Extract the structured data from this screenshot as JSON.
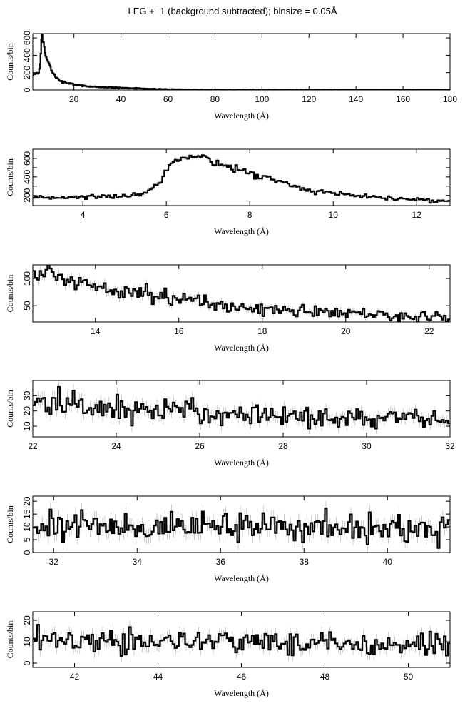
{
  "figure": {
    "title": "LEG +−1 (background subtracted); binsize = 0.05Å",
    "line_color": "#000000",
    "error_color": "#aaaaaa"
  },
  "chart_data": [
    {
      "type": "line",
      "xlabel": "Wavelength (Å)",
      "ylabel": "Counts/bin",
      "xlim": [
        2.5,
        180
      ],
      "ylim": [
        0,
        650
      ],
      "xticks": [
        20,
        40,
        60,
        80,
        100,
        120,
        140,
        160,
        180
      ],
      "yticks": [
        0,
        200,
        400,
        600
      ],
      "series": [
        {
          "x": [
            2.5,
            3,
            4,
            5,
            5.5,
            6,
            6.3,
            6.6,
            7,
            7.5,
            8,
            9,
            10,
            11,
            12,
            14,
            16,
            18,
            20,
            25,
            30,
            40,
            50,
            60,
            70,
            80,
            100,
            120,
            140,
            160,
            180
          ],
          "y": [
            170,
            180,
            190,
            200,
            280,
            450,
            640,
            600,
            560,
            470,
            400,
            330,
            260,
            200,
            160,
            110,
            90,
            75,
            65,
            45,
            35,
            25,
            15,
            8,
            5,
            3,
            2,
            2,
            1,
            1,
            1
          ]
        }
      ]
    },
    {
      "type": "line",
      "xlabel": "Wavelength (Å)",
      "ylabel": "Counts/bin",
      "xlim": [
        2.8,
        12.8
      ],
      "ylim": [
        90,
        700
      ],
      "xticks": [
        4,
        6,
        8,
        10,
        12
      ],
      "yticks": [
        200,
        300,
        400,
        500,
        600
      ],
      "ytick_labels": [
        "200",
        "",
        "400",
        "",
        "600"
      ],
      "series": [
        {
          "x": [
            2.8,
            3.2,
            3.6,
            4.0,
            4.4,
            4.8,
            5.2,
            5.5,
            5.8,
            6.0,
            6.15,
            6.3,
            6.5,
            6.8,
            7.1,
            7.4,
            7.7,
            8.0,
            8.5,
            9.0,
            9.5,
            10.0,
            10.5,
            11.0,
            11.5,
            12.0,
            12.5,
            12.8
          ],
          "y": [
            165,
            175,
            185,
            180,
            190,
            190,
            200,
            230,
            330,
            450,
            560,
            630,
            640,
            620,
            580,
            520,
            480,
            440,
            380,
            310,
            250,
            220,
            200,
            175,
            165,
            155,
            140,
            130
          ]
        }
      ]
    },
    {
      "type": "line",
      "xlabel": "Wavelength (Å)",
      "ylabel": "Counts/bin",
      "xlim": [
        12.5,
        22.5
      ],
      "ylim": [
        20,
        125
      ],
      "xticks": [
        14,
        16,
        18,
        20,
        22
      ],
      "yticks": [
        50,
        100
      ],
      "series": [
        {
          "x": [
            12.5,
            13.0,
            13.5,
            14.0,
            14.5,
            15.0,
            15.5,
            16.0,
            16.5,
            17.0,
            17.5,
            18.0,
            18.5,
            19.0,
            19.5,
            20.0,
            20.5,
            21.0,
            21.5,
            22.0,
            22.5
          ],
          "y": [
            112,
            105,
            95,
            88,
            82,
            76,
            70,
            63,
            56,
            50,
            47,
            45,
            42,
            40,
            38,
            36,
            34,
            32,
            31,
            29,
            28
          ]
        }
      ]
    },
    {
      "type": "line",
      "xlabel": "Wavelength (Å)",
      "ylabel": "Counts/bin",
      "xlim": [
        22,
        32
      ],
      "ylim": [
        3,
        40
      ],
      "xticks": [
        22,
        24,
        26,
        28,
        30,
        32
      ],
      "yticks": [
        10,
        20,
        30
      ],
      "series": [
        {
          "x": [
            22,
            23,
            24,
            25,
            26,
            27,
            28,
            29,
            30,
            31,
            32
          ],
          "y": [
            26,
            24,
            21,
            21,
            19,
            18,
            17,
            16,
            15,
            15,
            14
          ]
        }
      ]
    },
    {
      "type": "line",
      "xlabel": "Wavelength (Å)",
      "ylabel": "Counts/bin",
      "xlim": [
        31.5,
        41.5
      ],
      "ylim": [
        0,
        22
      ],
      "xticks": [
        32,
        34,
        36,
        38,
        40
      ],
      "yticks": [
        0,
        5,
        10,
        15,
        20
      ],
      "ytick_labels": [
        "0",
        "5",
        "10",
        "15",
        "20"
      ],
      "series": [
        {
          "x": [
            31.5,
            33,
            34.5,
            36,
            37.5,
            39,
            40.5,
            41.5
          ],
          "y": [
            11,
            10.5,
            10,
            10,
            10,
            9.5,
            9,
            9
          ]
        }
      ]
    },
    {
      "type": "line",
      "xlabel": "Wavelength (Å)",
      "ylabel": "Counts/bin",
      "xlim": [
        41,
        51
      ],
      "ylim": [
        -2,
        24
      ],
      "xticks": [
        42,
        44,
        46,
        48,
        50
      ],
      "yticks": [
        0,
        10,
        20
      ],
      "series": [
        {
          "x": [
            41,
            42.5,
            44,
            45.5,
            47,
            48.5,
            50,
            51
          ],
          "y": [
            11,
            10.5,
            10,
            10,
            10,
            9.5,
            9.5,
            9
          ]
        }
      ]
    }
  ]
}
